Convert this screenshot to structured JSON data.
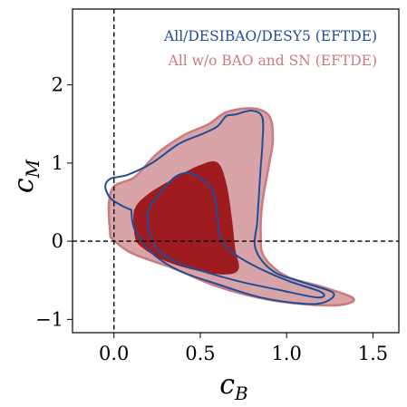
{
  "chart_data": {
    "type": "contour",
    "xlabel": {
      "main": "c",
      "sub": "B"
    },
    "ylabel": {
      "main": "c",
      "sub": "M"
    },
    "xlim": [
      -0.24,
      1.65
    ],
    "ylim": [
      -1.17,
      2.97
    ],
    "xticks": [
      0.0,
      0.5,
      1.0,
      1.5
    ],
    "xtick_labels": [
      "0.0",
      "0.5",
      "1.0",
      "1.5"
    ],
    "yticks": [
      -1,
      0,
      1,
      2
    ],
    "ytick_labels": [
      "−1",
      "0",
      "1",
      "2"
    ],
    "reference_lines": {
      "x": 0,
      "y": 0,
      "style": "dashed",
      "color": "#000000"
    },
    "legend_position": "top-right",
    "colors": {
      "blue": "#1f4e96",
      "red_outer_fill": "#d8a4a8",
      "red_outer_edge": "#c97b80",
      "red_inner_fill": "#9e1c1f"
    },
    "series": [
      {
        "name": "All/DESIBAO/DESY5 (EFTDE)",
        "style": "outline",
        "color": "#1f4e96",
        "contours": [
          {
            "level": "95%",
            "points": [
              [
                0.1,
                0.4
              ],
              [
                0.05,
                0.45
              ],
              [
                -0.02,
                0.55
              ],
              [
                -0.05,
                0.7
              ],
              [
                -0.02,
                0.8
              ],
              [
                0.08,
                0.85
              ],
              [
                0.22,
                1.0
              ],
              [
                0.38,
                1.25
              ],
              [
                0.52,
                1.38
              ],
              [
                0.6,
                1.47
              ],
              [
                0.65,
                1.6
              ],
              [
                0.7,
                1.62
              ],
              [
                0.8,
                1.67
              ],
              [
                0.86,
                1.58
              ],
              [
                0.86,
                1.25
              ],
              [
                0.85,
                0.95
              ],
              [
                0.84,
                0.6
              ],
              [
                0.83,
                0.25
              ],
              [
                0.82,
                -0.1
              ],
              [
                0.92,
                -0.38
              ],
              [
                1.1,
                -0.53
              ],
              [
                1.27,
                -0.66
              ],
              [
                1.22,
                -0.78
              ],
              [
                1.1,
                -0.8
              ],
              [
                0.85,
                -0.72
              ],
              [
                0.6,
                -0.55
              ],
              [
                0.38,
                -0.38
              ],
              [
                0.22,
                -0.15
              ],
              [
                0.12,
                0.15
              ],
              [
                0.1,
                0.4
              ]
            ]
          },
          {
            "level": "68%",
            "points": [
              [
                0.2,
                0.15
              ],
              [
                0.2,
                0.4
              ],
              [
                0.28,
                0.65
              ],
              [
                0.36,
                0.83
              ],
              [
                0.44,
                0.87
              ],
              [
                0.53,
                0.76
              ],
              [
                0.58,
                0.6
              ],
              [
                0.6,
                0.3
              ],
              [
                0.61,
                0.1
              ],
              [
                0.66,
                -0.1
              ],
              [
                0.8,
                -0.3
              ],
              [
                1.0,
                -0.5
              ],
              [
                1.2,
                -0.65
              ],
              [
                1.18,
                -0.72
              ],
              [
                0.95,
                -0.62
              ],
              [
                0.7,
                -0.5
              ],
              [
                0.4,
                -0.3
              ],
              [
                0.25,
                -0.1
              ],
              [
                0.2,
                0.15
              ]
            ]
          }
        ]
      },
      {
        "name": "All w/o BAO and SN (EFTDE)",
        "style": "filled",
        "color": "#c97b80",
        "contours": [
          {
            "level": "95%",
            "points": [
              [
                -0.02,
                0.05
              ],
              [
                -0.03,
                0.45
              ],
              [
                0.0,
                0.7
              ],
              [
                0.12,
                0.82
              ],
              [
                0.25,
                1.12
              ],
              [
                0.4,
                1.35
              ],
              [
                0.55,
                1.5
              ],
              [
                0.65,
                1.65
              ],
              [
                0.8,
                1.7
              ],
              [
                0.9,
                1.6
              ],
              [
                0.92,
                1.3
              ],
              [
                0.9,
                1.0
              ],
              [
                0.86,
                0.5
              ],
              [
                0.85,
                0.1
              ],
              [
                0.87,
                -0.2
              ],
              [
                1.0,
                -0.45
              ],
              [
                1.2,
                -0.58
              ],
              [
                1.38,
                -0.72
              ],
              [
                1.35,
                -0.8
              ],
              [
                1.2,
                -0.82
              ],
              [
                0.9,
                -0.75
              ],
              [
                0.6,
                -0.58
              ],
              [
                0.35,
                -0.35
              ],
              [
                0.1,
                -0.15
              ],
              [
                -0.02,
                0.05
              ]
            ]
          },
          {
            "level": "68%",
            "points": [
              [
                0.12,
                0.1
              ],
              [
                0.12,
                0.4
              ],
              [
                0.2,
                0.6
              ],
              [
                0.35,
                0.8
              ],
              [
                0.5,
                0.97
              ],
              [
                0.6,
                1.0
              ],
              [
                0.65,
                0.72
              ],
              [
                0.68,
                0.3
              ],
              [
                0.7,
                -0.1
              ],
              [
                0.72,
                -0.35
              ],
              [
                0.65,
                -0.42
              ],
              [
                0.5,
                -0.38
              ],
              [
                0.3,
                -0.25
              ],
              [
                0.15,
                -0.05
              ],
              [
                0.12,
                0.1
              ]
            ]
          }
        ]
      }
    ]
  }
}
